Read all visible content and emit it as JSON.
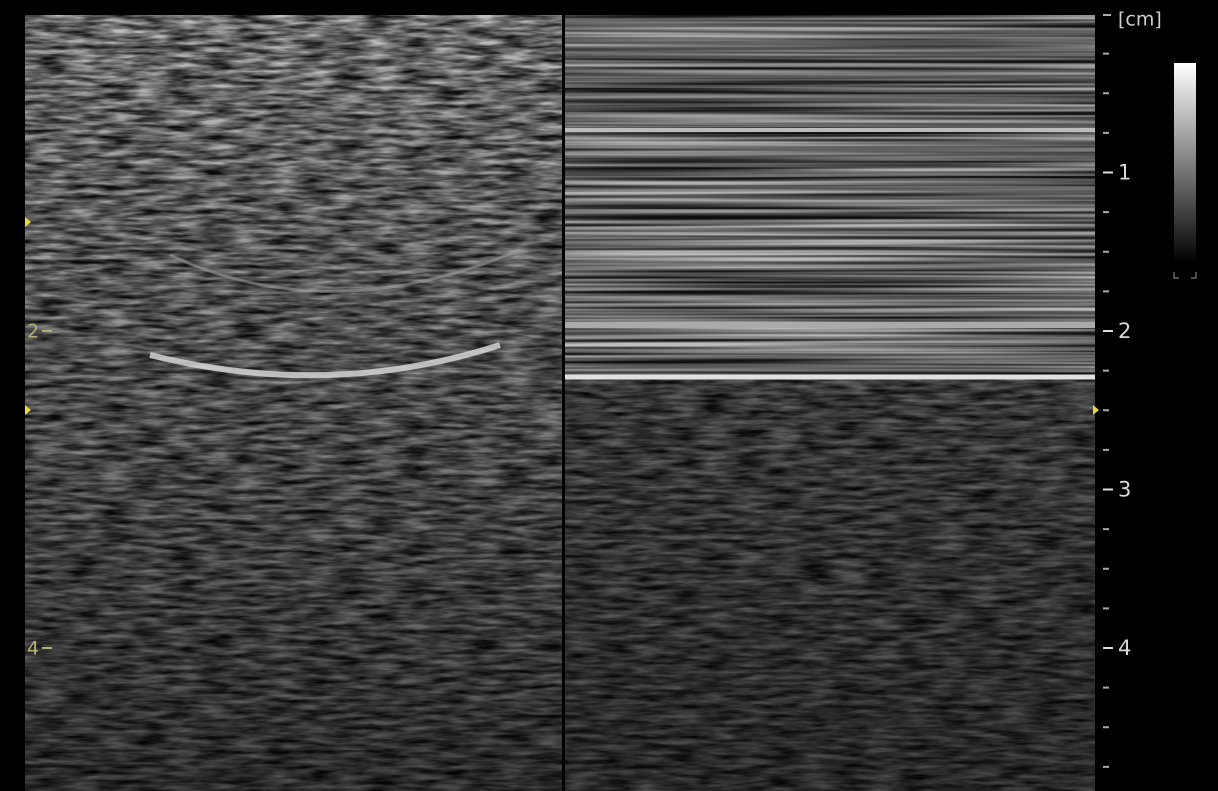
{
  "depth_scale": {
    "unit": "[cm]",
    "labels": [
      "1",
      "2",
      "3",
      "4"
    ]
  },
  "left_scale": {
    "labels": [
      "2",
      "4"
    ]
  }
}
